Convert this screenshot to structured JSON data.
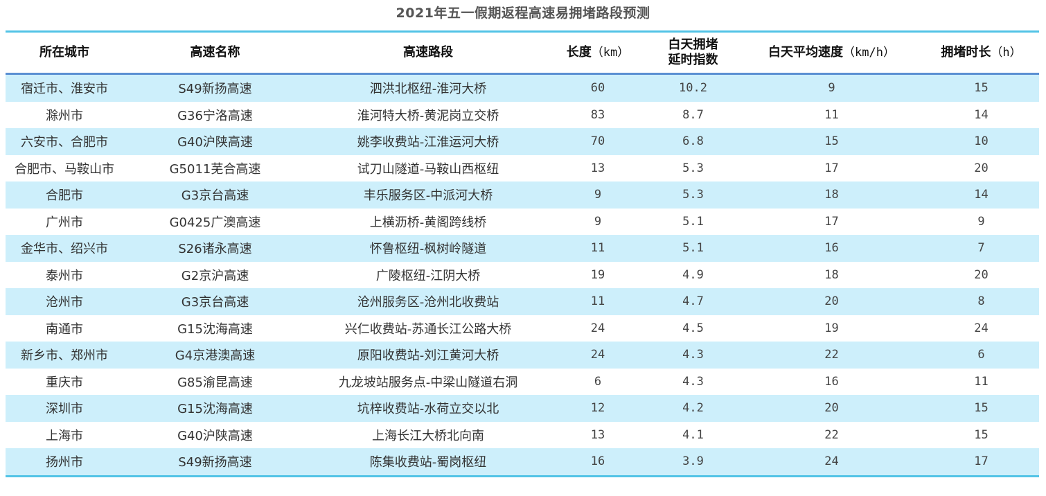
{
  "title": "2021年五一假期返程高速易拥堵路段预测",
  "columns": [
    {
      "label": "所在城市",
      "unit": ""
    },
    {
      "label": "高速名称",
      "unit": ""
    },
    {
      "label": "高速路段",
      "unit": ""
    },
    {
      "label": "长度",
      "unit": "（km）"
    },
    {
      "label": "白天拥堵",
      "label2": "延时指数",
      "unit": ""
    },
    {
      "label": "白天平均速度",
      "unit": "（km/h）"
    },
    {
      "label": "拥堵时长",
      "unit": "（h）"
    }
  ],
  "rows": [
    [
      "宿迁市、淮安市",
      "S49新扬高速",
      "泗洪北枢纽-淮河大桥",
      "60",
      "10.2",
      "9",
      "15"
    ],
    [
      "滁州市",
      "G36宁洛高速",
      "淮河特大桥-黄泥岗立交桥",
      "83",
      "8.7",
      "11",
      "14"
    ],
    [
      "六安市、合肥市",
      "G40沪陕高速",
      "姚李收费站-江淮运河大桥",
      "70",
      "6.8",
      "15",
      "10"
    ],
    [
      "合肥市、马鞍山市",
      "G5011芜合高速",
      "试刀山隧道-马鞍山西枢纽",
      "13",
      "5.3",
      "17",
      "20"
    ],
    [
      "合肥市",
      "G3京台高速",
      "丰乐服务区-中派河大桥",
      "9",
      "5.3",
      "18",
      "14"
    ],
    [
      "广州市",
      "G0425广澳高速",
      "上横沥桥-黄阁跨线桥",
      "9",
      "5.1",
      "17",
      "9"
    ],
    [
      "金华市、绍兴市",
      "S26诸永高速",
      "怀鲁枢纽-枫树岭隧道",
      "11",
      "5.1",
      "16",
      "7"
    ],
    [
      "泰州市",
      "G2京沪高速",
      "广陵枢纽-江阴大桥",
      "19",
      "4.9",
      "18",
      "20"
    ],
    [
      "沧州市",
      "G3京台高速",
      "沧州服务区-沧州北收费站",
      "11",
      "4.7",
      "20",
      "8"
    ],
    [
      "南通市",
      "G15沈海高速",
      "兴仁收费站-苏通长江公路大桥",
      "24",
      "4.5",
      "19",
      "24"
    ],
    [
      "新乡市、郑州市",
      "G4京港澳高速",
      "原阳收费站-刘江黄河大桥",
      "24",
      "4.3",
      "22",
      "6"
    ],
    [
      "重庆市",
      "G85渝昆高速",
      "九龙坡站服务点-中梁山隧道右洞",
      "6",
      "4.3",
      "16",
      "11"
    ],
    [
      "深圳市",
      "G15沈海高速",
      "坑梓收费站-水荷立交以北",
      "12",
      "4.2",
      "20",
      "15"
    ],
    [
      "上海市",
      "G40沪陕高速",
      "上海长江大桥北向南",
      "13",
      "4.1",
      "22",
      "15"
    ],
    [
      "扬州市",
      "S49新扬高速",
      "陈集收费站-蜀岗枢纽",
      "16",
      "3.9",
      "24",
      "17"
    ]
  ],
  "colors": {
    "row_stripe": "#cdeffb",
    "top_rule": "#52c3e6",
    "header_rule": "#5a8fd2",
    "title": "#555555"
  }
}
